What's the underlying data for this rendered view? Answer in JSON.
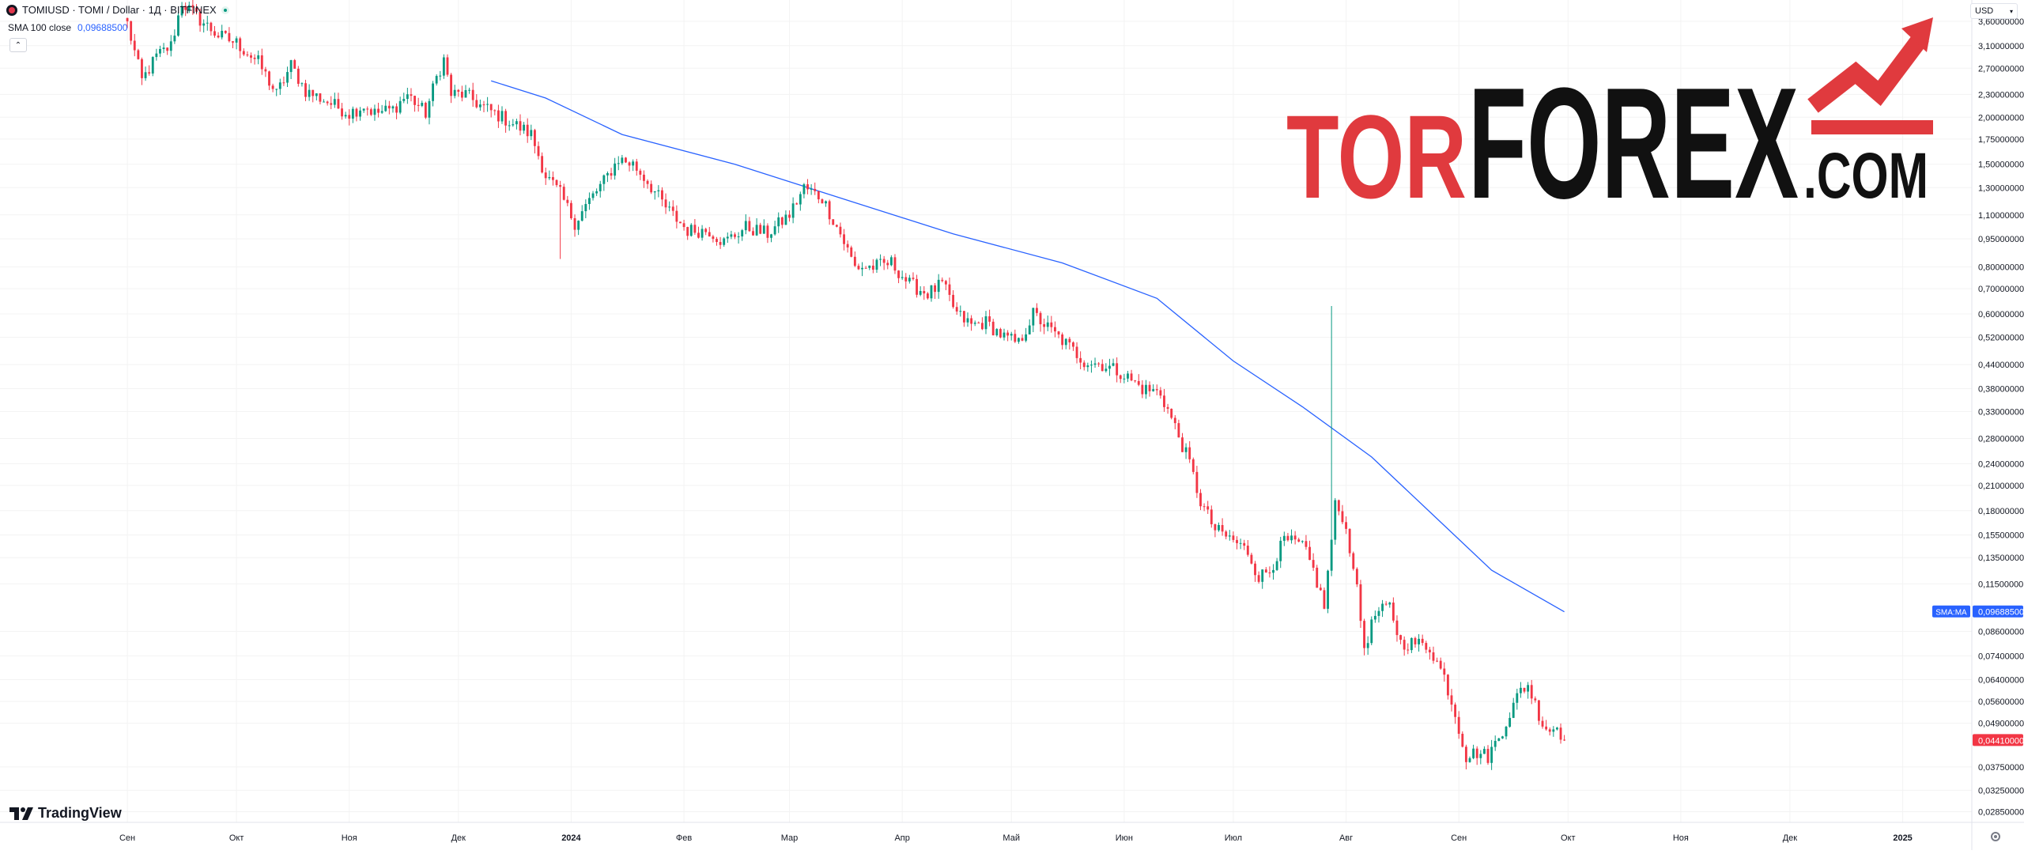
{
  "header": {
    "symbol_title": "TOMIUSD · TOMI / Dollar · 1Д · BITFINEX",
    "indicator_name": "SMA 100 close",
    "indicator_value": "0,09688500",
    "currency": "USD"
  },
  "footer": {
    "brand": "TradingView"
  },
  "watermark": {
    "part1": "TOR",
    "part2": "FOREX",
    "part3": ".COM"
  },
  "colors": {
    "up": "#089981",
    "down": "#f23645",
    "sma": "#2962ff",
    "grid": "#f3f3f3",
    "axis_text": "#131722"
  },
  "chart_data": {
    "type": "candlestick",
    "price_scale": "log",
    "ylim": [
      0.0267,
      4.1
    ],
    "x_range": [
      "2023-07-28",
      "2025-01-20"
    ],
    "y_ticks": [
      "3,60000000",
      "3,10000000",
      "2,70000000",
      "2,30000000",
      "2,00000000",
      "1,75000000",
      "1,50000000",
      "1,30000000",
      "1,10000000",
      "0,95000000",
      "0,80000000",
      "0,70000000",
      "0,60000000",
      "0,52000000",
      "0,44000000",
      "0,38000000",
      "0,33000000",
      "0,28000000",
      "0,24000000",
      "0,21000000",
      "0,18000000",
      "0,15500000",
      "0,13500000",
      "0,11500000",
      "0,08600000",
      "0,07400000",
      "0,06400000",
      "0,05600000",
      "0,04900000",
      "0,03750000",
      "0,03250000",
      "0,02850000"
    ],
    "x_ticks": [
      {
        "label": "Сен",
        "date": "2023-09-01"
      },
      {
        "label": "Окт",
        "date": "2023-10-01"
      },
      {
        "label": "Ноя",
        "date": "2023-11-01"
      },
      {
        "label": "Дек",
        "date": "2023-12-01"
      },
      {
        "label": "2024",
        "date": "2024-01-01"
      },
      {
        "label": "Фев",
        "date": "2024-02-01"
      },
      {
        "label": "Мар",
        "date": "2024-03-01"
      },
      {
        "label": "Апр",
        "date": "2024-04-01"
      },
      {
        "label": "Май",
        "date": "2024-05-01"
      },
      {
        "label": "Июн",
        "date": "2024-06-01"
      },
      {
        "label": "Июл",
        "date": "2024-07-01"
      },
      {
        "label": "Авг",
        "date": "2024-08-01"
      },
      {
        "label": "Сен",
        "date": "2024-09-01"
      },
      {
        "label": "Окт",
        "date": "2024-10-01"
      },
      {
        "label": "Ноя",
        "date": "2024-11-01"
      },
      {
        "label": "Дек",
        "date": "2024-12-01"
      },
      {
        "label": "2025",
        "date": "2025-01-01"
      }
    ],
    "price_path": [
      [
        "2023-09-01",
        3.55
      ],
      [
        "2023-09-05",
        2.5
      ],
      [
        "2023-09-09",
        2.9
      ],
      [
        "2023-09-13",
        3.1
      ],
      [
        "2023-09-16",
        4.05
      ],
      [
        "2023-09-20",
        3.7
      ],
      [
        "2023-09-26",
        3.3
      ],
      [
        "2023-10-01",
        3.15
      ],
      [
        "2023-10-07",
        2.8
      ],
      [
        "2023-10-12",
        2.3
      ],
      [
        "2023-10-16",
        2.75
      ],
      [
        "2023-10-20",
        2.35
      ],
      [
        "2023-10-26",
        2.2
      ],
      [
        "2023-11-01",
        2.05
      ],
      [
        "2023-11-05",
        2.15
      ],
      [
        "2023-11-08",
        2.05
      ],
      [
        "2023-11-13",
        2.1
      ],
      [
        "2023-11-17",
        2.3
      ],
      [
        "2023-11-22",
        2.05
      ],
      [
        "2023-11-25",
        2.55
      ],
      [
        "2023-11-27",
        2.85
      ],
      [
        "2023-11-29",
        2.3
      ],
      [
        "2023-12-03",
        2.3
      ],
      [
        "2023-12-07",
        2.15
      ],
      [
        "2023-12-11",
        2.05
      ],
      [
        "2023-12-17",
        1.9
      ],
      [
        "2023-12-21",
        1.8
      ],
      [
        "2023-12-25",
        1.4
      ],
      [
        "2023-12-29",
        1.25
      ],
      [
        "2024-01-02",
        1.05
      ],
      [
        "2024-01-06",
        1.2
      ],
      [
        "2024-01-10",
        1.35
      ],
      [
        "2024-01-14",
        1.55
      ],
      [
        "2024-01-18",
        1.5
      ],
      [
        "2024-01-22",
        1.35
      ],
      [
        "2024-01-27",
        1.15
      ],
      [
        "2024-02-02",
        1.0
      ],
      [
        "2024-02-08",
        1.0
      ],
      [
        "2024-02-12",
        0.93
      ],
      [
        "2024-02-18",
        1.02
      ],
      [
        "2024-02-24",
        0.98
      ],
      [
        "2024-03-01",
        1.1
      ],
      [
        "2024-03-05",
        1.3
      ],
      [
        "2024-03-10",
        1.22
      ],
      [
        "2024-03-15",
        0.98
      ],
      [
        "2024-03-19",
        0.8
      ],
      [
        "2024-03-24",
        0.8
      ],
      [
        "2024-03-29",
        0.82
      ],
      [
        "2024-04-03",
        0.72
      ],
      [
        "2024-04-08",
        0.68
      ],
      [
        "2024-04-12",
        0.72
      ],
      [
        "2024-04-16",
        0.6
      ],
      [
        "2024-04-20",
        0.56
      ],
      [
        "2024-04-24",
        0.57
      ],
      [
        "2024-04-29",
        0.52
      ],
      [
        "2024-05-03",
        0.5
      ],
      [
        "2024-05-07",
        0.6
      ],
      [
        "2024-05-12",
        0.54
      ],
      [
        "2024-05-16",
        0.5
      ],
      [
        "2024-05-21",
        0.45
      ],
      [
        "2024-05-26",
        0.44
      ],
      [
        "2024-05-31",
        0.42
      ],
      [
        "2024-06-06",
        0.38
      ],
      [
        "2024-06-11",
        0.37
      ],
      [
        "2024-06-15",
        0.3
      ],
      [
        "2024-06-19",
        0.24
      ],
      [
        "2024-06-22",
        0.19
      ],
      [
        "2024-06-26",
        0.16
      ],
      [
        "2024-07-01",
        0.15
      ],
      [
        "2024-07-05",
        0.14
      ],
      [
        "2024-07-08",
        0.12
      ],
      [
        "2024-07-11",
        0.125
      ],
      [
        "2024-07-15",
        0.15
      ],
      [
        "2024-07-20",
        0.145
      ],
      [
        "2024-07-23",
        0.125
      ],
      [
        "2024-07-26",
        0.1
      ],
      [
        "2024-07-29",
        0.185
      ],
      [
        "2024-07-31",
        0.175
      ],
      [
        "2024-08-03",
        0.13
      ],
      [
        "2024-08-06",
        0.078
      ],
      [
        "2024-08-09",
        0.095
      ],
      [
        "2024-08-13",
        0.1
      ],
      [
        "2024-08-16",
        0.08
      ],
      [
        "2024-08-20",
        0.08
      ],
      [
        "2024-08-24",
        0.078
      ],
      [
        "2024-08-28",
        0.065
      ],
      [
        "2024-08-31",
        0.052
      ],
      [
        "2024-09-03",
        0.04
      ],
      [
        "2024-09-06",
        0.041
      ],
      [
        "2024-09-09",
        0.04
      ],
      [
        "2024-09-12",
        0.045
      ],
      [
        "2024-09-15",
        0.052
      ],
      [
        "2024-09-18",
        0.06
      ],
      [
        "2024-09-20",
        0.062
      ],
      [
        "2024-09-22",
        0.055
      ],
      [
        "2024-09-24",
        0.049
      ],
      [
        "2024-09-26",
        0.047
      ],
      [
        "2024-09-28",
        0.048
      ],
      [
        "2024-09-30",
        0.0441
      ]
    ],
    "wick_events": [
      {
        "date": "2023-12-29",
        "low": 0.84
      },
      {
        "date": "2024-07-28",
        "high": 0.63
      }
    ],
    "last_price": "0,04410000",
    "sma": {
      "name": "SMA:MA",
      "last_value": "0,09688500",
      "points": [
        [
          "2023-12-10",
          2.5
        ],
        [
          "2023-12-25",
          2.25
        ],
        [
          "2024-01-15",
          1.8
        ],
        [
          "2024-02-15",
          1.5
        ],
        [
          "2024-03-15",
          1.22
        ],
        [
          "2024-04-15",
          0.98
        ],
        [
          "2024-05-15",
          0.82
        ],
        [
          "2024-06-10",
          0.66
        ],
        [
          "2024-07-01",
          0.45
        ],
        [
          "2024-07-20",
          0.34
        ],
        [
          "2024-08-08",
          0.25
        ],
        [
          "2024-08-25",
          0.175
        ],
        [
          "2024-09-10",
          0.125
        ],
        [
          "2024-09-30",
          0.0969
        ]
      ]
    }
  }
}
